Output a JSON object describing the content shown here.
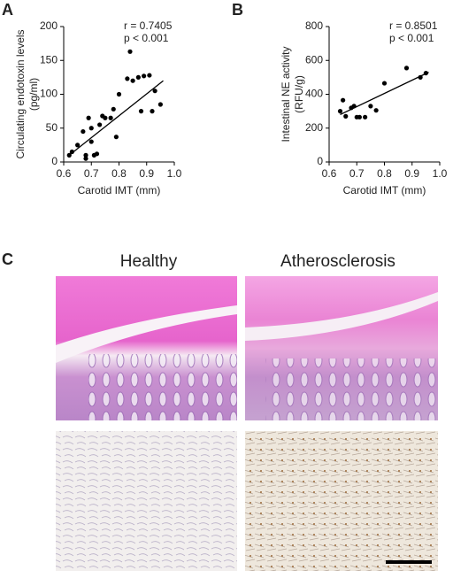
{
  "chart_data": [
    {
      "type": "scatter",
      "panel_label": "A",
      "ylabel": [
        "Circulating endotoxin levels",
        "(pg/ml)"
      ],
      "xlabel": "Carotid IMT (mm)",
      "annotations": [
        "r = 0.7405",
        "p < 0.001"
      ],
      "x": [
        0.62,
        0.63,
        0.65,
        0.67,
        0.68,
        0.68,
        0.69,
        0.7,
        0.7,
        0.71,
        0.72,
        0.73,
        0.74,
        0.75,
        0.77,
        0.78,
        0.79,
        0.8,
        0.83,
        0.84,
        0.85,
        0.87,
        0.88,
        0.89,
        0.91,
        0.92,
        0.93,
        0.95
      ],
      "values": [
        10,
        15,
        25,
        45,
        10,
        5,
        65,
        30,
        50,
        10,
        12,
        55,
        68,
        65,
        65,
        78,
        37,
        100,
        123,
        163,
        120,
        125,
        75,
        127,
        128,
        75,
        105,
        85
      ],
      "color": "#000000",
      "trendline": {
        "x": [
          0.62,
          0.96
        ],
        "y": [
          10,
          120
        ]
      },
      "xlim": [
        0.6,
        1.0
      ],
      "xticks": [
        0.6,
        0.7,
        0.8,
        0.9,
        {
          "value": 1,
          "label": "1.0"
        }
      ],
      "ylim": [
        0,
        200
      ],
      "yticks": [
        0,
        50,
        100,
        150,
        200
      ],
      "grid": false
    },
    {
      "type": "scatter",
      "panel_label": "B",
      "ylabel": [
        "Intestinal NE activity",
        "(RFU/g)"
      ],
      "xlabel": "Carotid IMT (mm)",
      "annotations": [
        "r = 0.8501",
        "p < 0.001"
      ],
      "x": [
        0.64,
        0.65,
        0.66,
        0.68,
        0.69,
        0.7,
        0.71,
        0.73,
        0.75,
        0.77,
        0.8,
        0.88,
        0.93,
        0.95
      ],
      "values": [
        300,
        365,
        270,
        320,
        330,
        265,
        265,
        265,
        330,
        305,
        465,
        555,
        500,
        525
      ],
      "color": "#000000",
      "trendline": {
        "x": [
          0.64,
          0.96
        ],
        "y": [
          280,
          530
        ]
      },
      "xlim": [
        0.6,
        1.0
      ],
      "xticks": [
        0.6,
        0.7,
        0.8,
        0.9,
        {
          "value": 1,
          "label": "1.0"
        }
      ],
      "ylim": [
        0,
        800
      ],
      "yticks": [
        0,
        200,
        400,
        600,
        800
      ],
      "grid": false
    }
  ],
  "panel_c": {
    "panel_label": "C",
    "columns": [
      "Healthy",
      "Atherosclerosis"
    ]
  }
}
